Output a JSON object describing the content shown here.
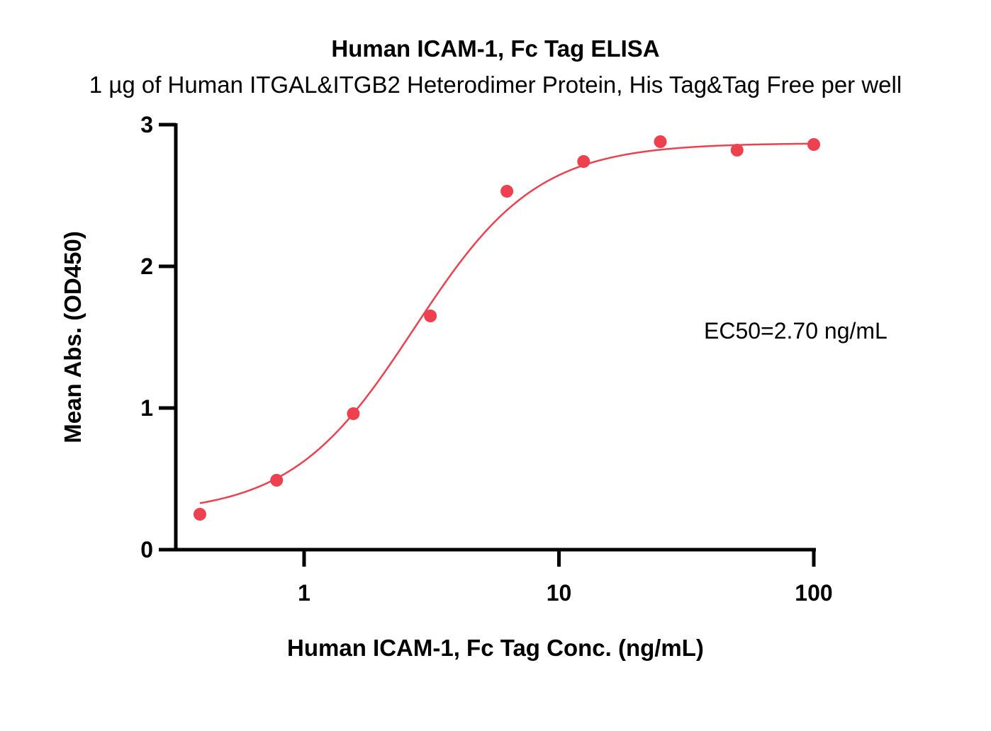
{
  "chart_data": {
    "type": "scatter",
    "title": "Human ICAM-1, Fc Tag ELISA",
    "subtitle": "1 µg of Human ITGAL&ITGB2 Heterodimer Protein, His Tag&Tag Free per well",
    "xlabel": "Human ICAM-1, Fc Tag Conc. (ng/mL)",
    "ylabel": "Mean Abs. (OD450)",
    "x_scale": "log",
    "xlim": [
      0.3,
      100
    ],
    "ylim": [
      0,
      3
    ],
    "x_ticks": [
      1,
      10,
      100
    ],
    "x_tick_labels": [
      "1",
      "10",
      "100"
    ],
    "y_ticks": [
      0,
      1,
      2,
      3
    ],
    "y_tick_labels": [
      "0",
      "1",
      "2",
      "3"
    ],
    "grid": false,
    "colors": {
      "series": "#ef4050",
      "axis": "#000000"
    },
    "series": [
      {
        "x": [
          0.39,
          0.78,
          1.56,
          3.13,
          6.25,
          12.5,
          25,
          50,
          100
        ],
        "y": [
          0.25,
          0.49,
          0.96,
          1.65,
          2.53,
          2.74,
          2.88,
          2.82,
          2.86
        ]
      }
    ],
    "fit": {
      "type": "4PL",
      "bottom": 0.25,
      "top": 2.87,
      "ec50": 2.7,
      "hill": 1.8
    },
    "annotation": "EC50=2.70 ng/mL"
  }
}
